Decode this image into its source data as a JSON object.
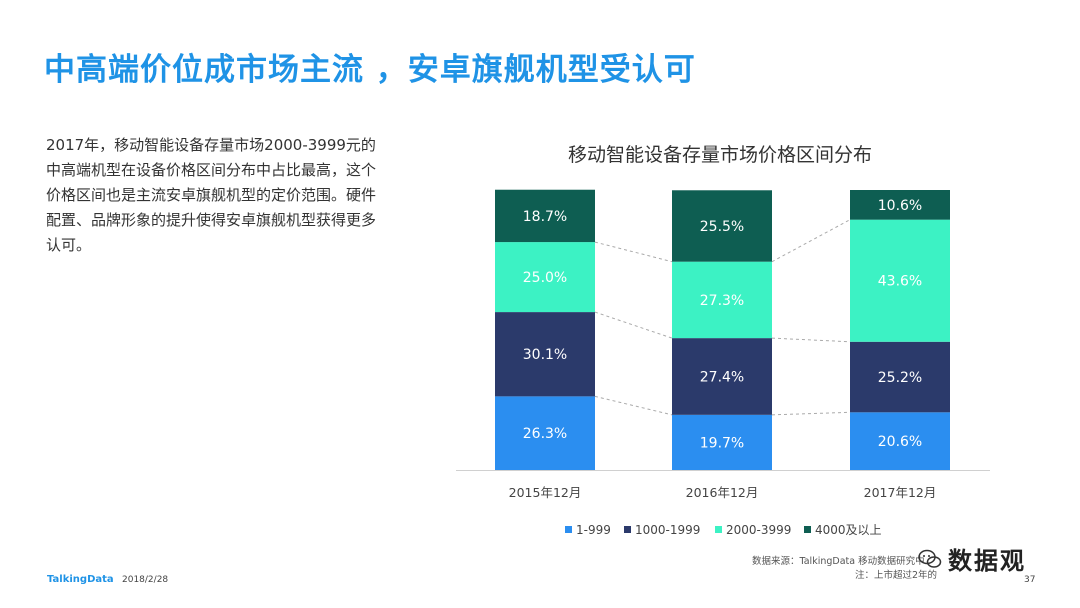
{
  "slide": {
    "title": "中高端价位成市场主流 ，安卓旗舰机型受认可",
    "description": "2017年，移动智能设备存量市场2000-3999元的中高端机型在设备价格区间分布中占比最高，这个价格区间也是主流安卓旗舰机型的定价范围。硬件配置、品牌形象的提升使得安卓旗舰机型获得更多认可。",
    "source": "数据来源：TalkingData 移动数据研究中",
    "note": "注：上市超过2年的",
    "brand": "TalkingData",
    "date": "2018/2/28",
    "page_number": "37",
    "watermark": "数据观"
  },
  "colors": {
    "title": "#1f93e6",
    "series": [
      "#2b8ef0",
      "#2b3a6b",
      "#3cf2c4",
      "#0e5e52"
    ],
    "connector": "#aaaaaa"
  },
  "chart_data": {
    "type": "bar",
    "stacked": true,
    "percent": true,
    "title": "移动智能设备存量市场价格区间分布",
    "categories": [
      "2015年12月",
      "2016年12月",
      "2017年12月"
    ],
    "series": [
      {
        "name": "1-999",
        "values": [
          26.3,
          19.7,
          20.6
        ]
      },
      {
        "name": "1000-1999",
        "values": [
          30.1,
          27.4,
          25.2
        ]
      },
      {
        "name": "2000-3999",
        "values": [
          25.0,
          27.3,
          43.6
        ]
      },
      {
        "name": "4000及以上",
        "values": [
          18.7,
          25.5,
          10.6
        ]
      }
    ],
    "ylim": [
      0,
      100
    ],
    "legend": "bottom",
    "grid": false
  }
}
